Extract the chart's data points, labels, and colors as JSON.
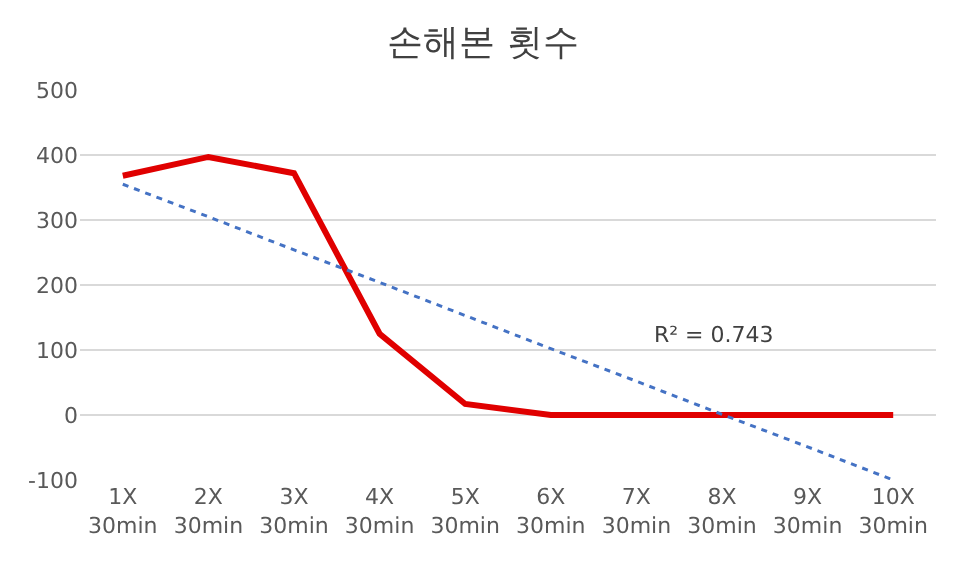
{
  "chart_data": {
    "type": "line",
    "title": "손해본 횟수",
    "categories": [
      "1X\n30min",
      "2X\n30min",
      "3X\n30min",
      "4X\n30min",
      "5X\n30min",
      "6X\n30min",
      "7X\n30min",
      "8X\n30min",
      "9X\n30min",
      "10X\n30min"
    ],
    "series": [
      {
        "color": "#e00000",
        "values": [
          368,
          397,
          372,
          125,
          17,
          0,
          0,
          0,
          0,
          0
        ],
        "line_style": "solid"
      },
      {
        "color": "#4472c4",
        "values": [
          355,
          305,
          254,
          204,
          153,
          102,
          52,
          1,
          -49,
          -100
        ],
        "line_style": "dotted"
      }
    ],
    "ylim": [
      -100,
      500
    ],
    "yticks": [
      -100,
      0,
      100,
      200,
      300,
      400,
      500
    ],
    "grid": "y",
    "marker": "none",
    "annotations": [
      "R² = 0.743"
    ]
  }
}
